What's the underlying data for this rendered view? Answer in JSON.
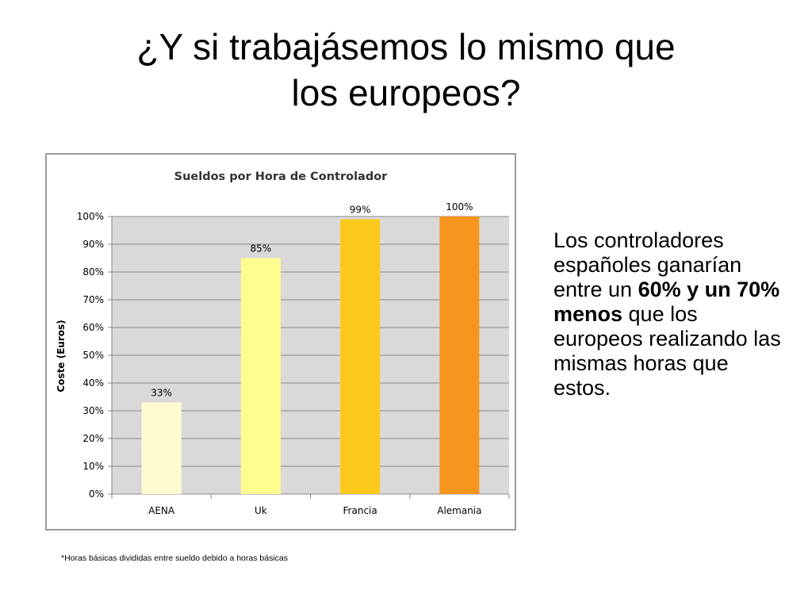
{
  "slide": {
    "title_line1": "¿Y si trabajásemos lo mismo que",
    "title_line2": "los europeos?"
  },
  "body_text": {
    "part1": "Los controladores españoles ganarían entre un ",
    "bold": "60% y un 70% menos",
    "part2": " que los europeos realizando las mismas horas que estos."
  },
  "footnote": "*Horas básicas divididas entre sueldo debido a horas básicas",
  "chart_data": {
    "type": "bar",
    "title": "Sueldos por Hora de Controlador",
    "ylabel": "Coste (Euros)",
    "xlabel": "",
    "categories": [
      "AENA",
      "Uk",
      "Francia",
      "Alemania"
    ],
    "values": [
      33,
      85,
      99,
      100
    ],
    "data_labels": [
      "33%",
      "85%",
      "99%",
      "100%"
    ],
    "bar_colors": [
      "#fefcd0",
      "#fefe90",
      "#fbc91b",
      "#f7961f"
    ],
    "ylim": [
      0,
      100
    ],
    "yticks": [
      0,
      10,
      20,
      30,
      40,
      50,
      60,
      70,
      80,
      90,
      100
    ],
    "ytick_labels": [
      "0%",
      "10%",
      "20%",
      "30%",
      "40%",
      "50%",
      "60%",
      "70%",
      "80%",
      "90%",
      "100%"
    ],
    "grid": true,
    "plot_background": "#d9d9d9",
    "legend": "none"
  }
}
